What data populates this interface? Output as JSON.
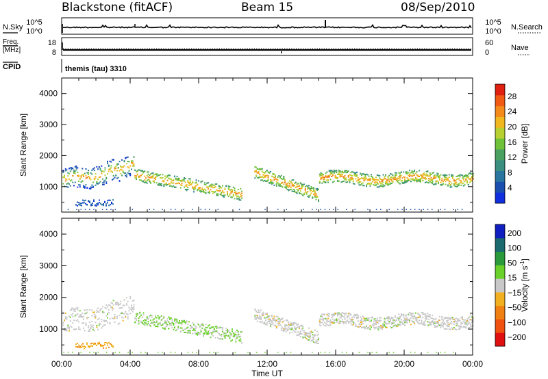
{
  "header": {
    "station": "Blackstone (fitACF)",
    "beam": "Beam 15",
    "date": "08/Sep/2010"
  },
  "summary": {
    "left_labels": {
      "nsky": "N.Sky",
      "freq_line1": "Freq.",
      "freq_line2": "[MHz]",
      "cpid": "CPID"
    },
    "right_labels": {
      "nsearch": "N.Search",
      "nave": "Nave"
    },
    "noise_ticks_left": [
      "10^5",
      "10^0"
    ],
    "noise_ticks_right": [
      "10^5",
      "10^0"
    ],
    "freq_ticks": [
      "18",
      "8"
    ],
    "nave_ticks": [
      "60",
      "0"
    ],
    "cpid_text": "themis (tau) 3310"
  },
  "chart_data": [
    {
      "type": "heatmap",
      "name": "power",
      "ylabel": "Slant Range [km]",
      "ylim": [
        180,
        4500
      ],
      "yticks": [
        1000,
        2000,
        3000,
        4000
      ],
      "xlim": [
        0,
        24
      ],
      "xticks": [
        "00:00",
        "04:00",
        "08:00",
        "12:00",
        "16:00",
        "20:00",
        "00:00"
      ],
      "colorbar": {
        "label": "Power [dB]",
        "ticks": [
          "4",
          "8",
          "12",
          "16",
          "20",
          "24",
          "28"
        ],
        "colors": [
          "#1030e0",
          "#1a4fb0",
          "#2a74a0",
          "#3a8f80",
          "#4aa060",
          "#6fc13a",
          "#b8d030",
          "#f0b81e",
          "#f48a1a",
          "#f05a12",
          "#e02010"
        ]
      }
    },
    {
      "type": "heatmap",
      "name": "velocity",
      "ylabel": "Slant Range [km]",
      "xlabel": "Time UT",
      "ylim": [
        180,
        4500
      ],
      "yticks": [
        1000,
        2000,
        3000,
        4000
      ],
      "xlim": [
        0,
        24
      ],
      "xticks": [
        "00:00",
        "04:00",
        "08:00",
        "12:00",
        "16:00",
        "20:00",
        "00:00"
      ],
      "colorbar": {
        "label_main": "Velocity [m s",
        "label_sup": "-1",
        "label_end": "]",
        "ticks": [
          "200",
          "100",
          "50",
          "15",
          "−15",
          "−50",
          "−100",
          "−200"
        ],
        "colors": [
          "#1020c0",
          "#1a6a70",
          "#2a9a3a",
          "#6ad02a",
          "#c8c8c8",
          "#f0b020",
          "#f08010",
          "#f05010",
          "#e01010"
        ]
      }
    }
  ]
}
